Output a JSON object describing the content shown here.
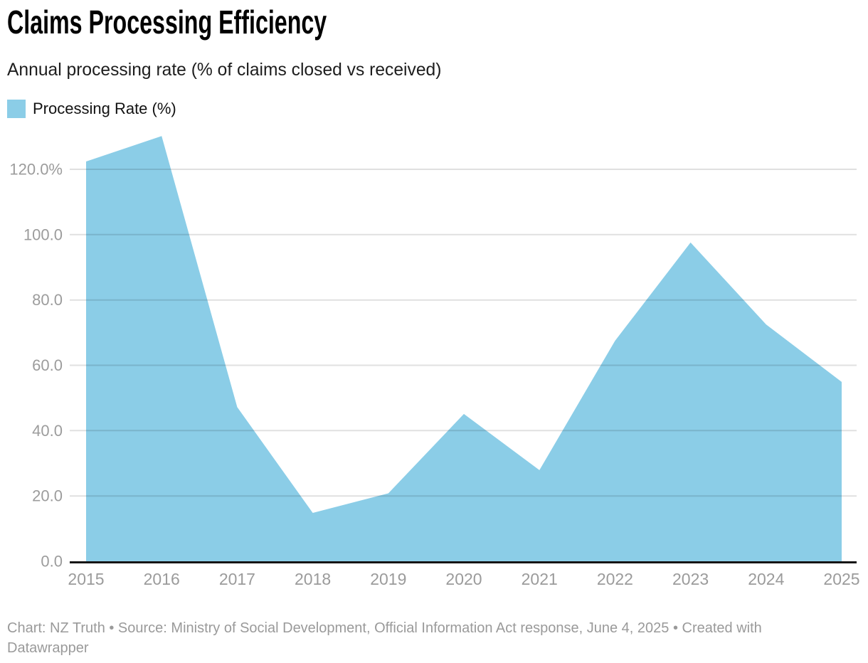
{
  "header": {
    "title": "Claims Processing Efficiency",
    "subtitle": "Annual processing rate (% of claims closed vs received)",
    "legend": {
      "label": "Processing Rate (%)",
      "swatch_color": "#8bcde7"
    }
  },
  "chart_data": {
    "type": "area",
    "title": "Claims Processing Efficiency",
    "subtitle": "Annual processing rate (% of claims closed vs received)",
    "categories": [
      "2015",
      "2016",
      "2017",
      "2018",
      "2019",
      "2020",
      "2021",
      "2022",
      "2023",
      "2024",
      "2025"
    ],
    "series": [
      {
        "name": "Processing Rate (%)",
        "values": [
          122.4,
          130.2,
          47.2,
          14.8,
          20.8,
          45.1,
          27.9,
          67.5,
          97.6,
          72.5,
          54.9
        ]
      }
    ],
    "xlabel": "",
    "ylabel": "",
    "ylim": [
      0,
      135
    ],
    "yticks": [
      {
        "value": 120,
        "label": "120.0%"
      },
      {
        "value": 100,
        "label": "100.0"
      },
      {
        "value": 80,
        "label": "80.0"
      },
      {
        "value": 60,
        "label": "60.0"
      },
      {
        "value": 40,
        "label": "40.0"
      },
      {
        "value": 20,
        "label": "20.0"
      },
      {
        "value": 0,
        "label": "0.0"
      }
    ],
    "grid": "horizontal",
    "legend_position": "top-left",
    "area_color": "#8bcde7",
    "axis_color": "#151515",
    "grid_color": "rgba(0,0,0,0.12)",
    "tick_color": "#9c9c9c"
  },
  "footer": {
    "text": "Chart: NZ Truth • Source: Ministry of Social Development, Official Information Act response, June 4, 2025 • Created with Datawrapper"
  }
}
